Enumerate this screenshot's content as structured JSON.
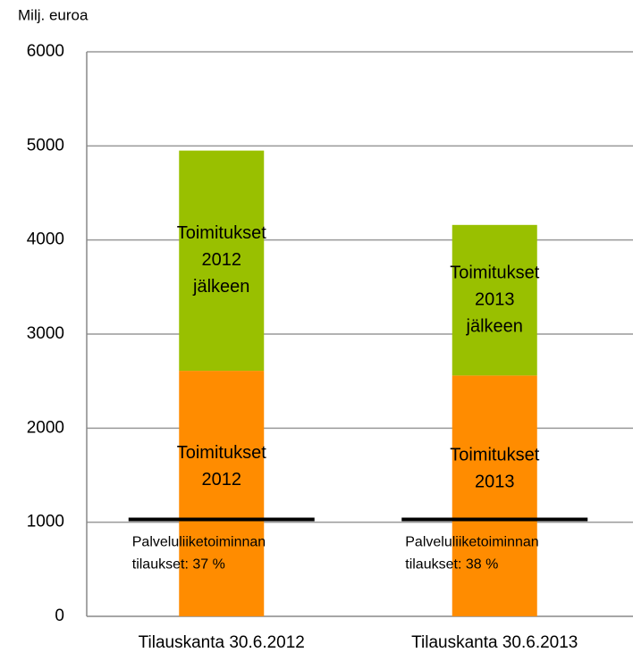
{
  "chart_data": {
    "type": "stacked_bar",
    "y_label": "Milj. euroa",
    "categories": [
      "Tilauskanta 30.6.2012",
      "Tilauskanta 30.6.2013"
    ],
    "series": [
      {
        "color": "#ff8c00",
        "values": [
          2610,
          2560
        ],
        "labels": [
          [
            "Toimitukset",
            "2012"
          ],
          [
            "Toimitukset",
            "2013"
          ]
        ]
      },
      {
        "color": "#99c000",
        "values": [
          2340,
          1600
        ],
        "labels": [
          [
            "Toimitukset",
            "2012",
            "jälkeen"
          ],
          [
            "Toimitukset",
            "2013",
            "jälkeen"
          ]
        ]
      }
    ],
    "markers": {
      "color": "#000000",
      "values": [
        1030,
        1030
      ],
      "labels": [
        [
          "Palveluliiketoiminnan",
          "tilaukset: 37 %"
        ],
        [
          "Palveluliiketoiminnan",
          "tilaukset: 38 %"
        ]
      ]
    },
    "ylim": [
      0,
      6000
    ],
    "yticks": [
      0,
      1000,
      2000,
      3000,
      4000,
      5000,
      6000
    ],
    "grid": true
  }
}
